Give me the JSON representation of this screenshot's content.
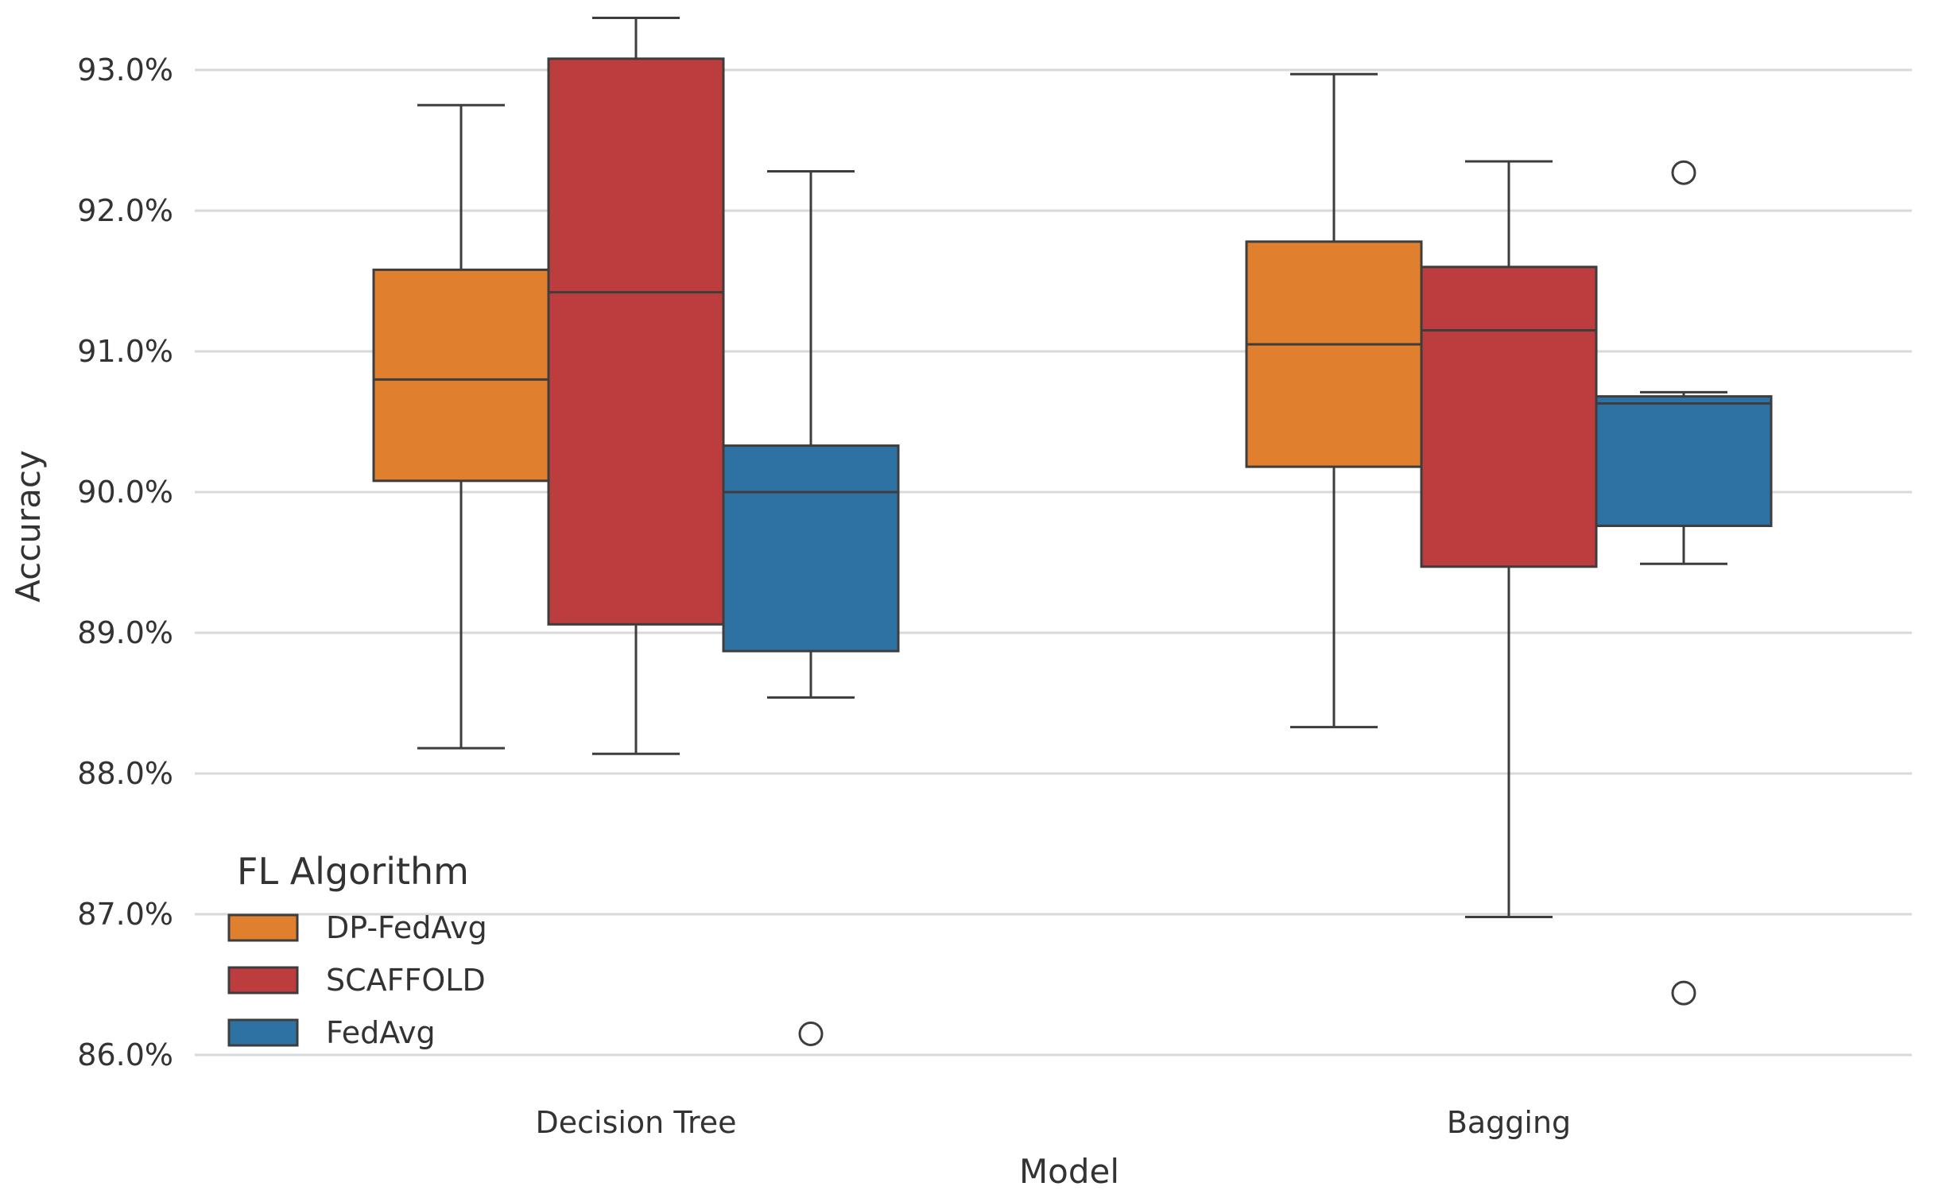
{
  "chart_data": {
    "type": "box",
    "title": "",
    "xlabel": "Model",
    "ylabel": "Accuracy",
    "ylim": [
      85.8,
      93.4
    ],
    "yticks": [
      86.0,
      87.0,
      88.0,
      89.0,
      90.0,
      91.0,
      92.0,
      93.0
    ],
    "ytick_labels": [
      "86.0%",
      "87.0%",
      "88.0%",
      "89.0%",
      "90.0%",
      "91.0%",
      "92.0%",
      "93.0%"
    ],
    "grid": "horizontal",
    "categories": [
      "Decision Tree",
      "Bagging"
    ],
    "legend": {
      "title": "FL Algorithm",
      "placement": "lower-left",
      "entries": [
        "DP-FedAvg",
        "SCAFFOLD",
        "FedAvg"
      ]
    },
    "series": [
      {
        "name": "DP-FedAvg",
        "color": "#e07f2e",
        "boxes": [
          {
            "whisker_low": 88.18,
            "q1": 90.08,
            "median": 90.8,
            "q3": 91.58,
            "whisker_high": 92.75,
            "outliers": []
          },
          {
            "whisker_low": 88.33,
            "q1": 90.18,
            "median": 91.05,
            "q3": 91.78,
            "whisker_high": 92.97,
            "outliers": []
          }
        ]
      },
      {
        "name": "SCAFFOLD",
        "color": "#bd3d3e",
        "boxes": [
          {
            "whisker_low": 88.14,
            "q1": 89.06,
            "median": 91.42,
            "q3": 93.08,
            "whisker_high": 93.37,
            "outliers": []
          },
          {
            "whisker_low": 86.98,
            "q1": 89.47,
            "median": 91.15,
            "q3": 91.6,
            "whisker_high": 92.35,
            "outliers": []
          }
        ]
      },
      {
        "name": "FedAvg",
        "color": "#2e72a4",
        "boxes": [
          {
            "whisker_low": 88.54,
            "q1": 88.87,
            "median": 90.0,
            "q3": 90.33,
            "whisker_high": 92.28,
            "outliers": [
              86.15
            ]
          },
          {
            "whisker_low": 89.49,
            "q1": 89.76,
            "median": 90.63,
            "q3": 90.68,
            "whisker_high": 90.71,
            "outliers": [
              92.27,
              86.44
            ]
          }
        ]
      }
    ]
  }
}
